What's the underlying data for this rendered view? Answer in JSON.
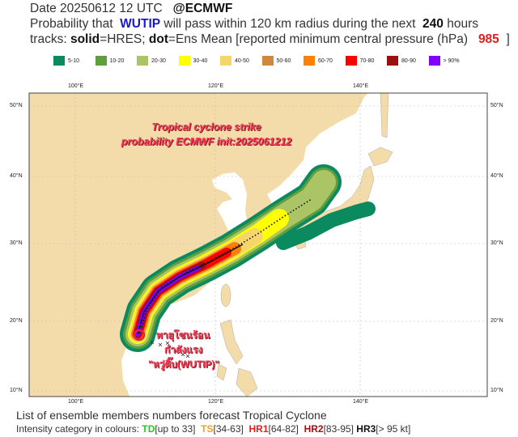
{
  "header": {
    "date_line": "Date 20250612 12 UTC",
    "source": "@ECMWF",
    "prob_prefix": "Probability that",
    "storm": "WUTIP",
    "prob_mid": "will pass within 120 km radius during the next",
    "hours": "240",
    "prob_suffix": "hours",
    "tracks_prefix": "tracks:",
    "solid": "solid",
    "solid_desc": "=HRES;",
    "dot": "dot",
    "dot_desc": "=Ens Mean [reported minimum central pressure (hPa)",
    "pressure": "985",
    "close": "]"
  },
  "legend": [
    {
      "label": "5-10",
      "color": "#0a8a5e"
    },
    {
      "label": "10-20",
      "color": "#5e9e3e"
    },
    {
      "label": "20-30",
      "color": "#aac466"
    },
    {
      "label": "30-40",
      "color": "#ffff00"
    },
    {
      "label": "40-50",
      "color": "#f5d66a"
    },
    {
      "label": "50-60",
      "color": "#d0883e"
    },
    {
      "label": "60-70",
      "color": "#ff7f00"
    },
    {
      "label": "70-80",
      "color": "#ff0000"
    },
    {
      "label": "80-90",
      "color": "#991010"
    },
    {
      "label": "> 90%",
      "color": "#8000ff"
    }
  ],
  "map": {
    "lon_labels": [
      "100°E",
      "120°E",
      "140°E"
    ],
    "lat_labels": [
      "50°N",
      "40°N",
      "30°N",
      "20°N",
      "10°N"
    ],
    "land_color": "#f4dcaa",
    "ocean_color": "#ffffff"
  },
  "overlay": {
    "title_line1": "Tropical cyclone strike",
    "title_line2": "probability ECMWF init:2025061212",
    "thai_line1": "พายุโซนร้อน",
    "thai_line2": "กำลังแรง",
    "thai_line3": "\"หวู่ติ๊บ(WUTIP)\""
  },
  "footer": {
    "line1": "List of ensemble members numbers forecast Tropical Cyclone",
    "intensity_prefix": "Intensity category in colours:",
    "td": "TD",
    "td_range": "[up to 33]",
    "ts": "TS",
    "ts_range": "[34-63]",
    "hr1": "HR1",
    "hr1_range": "[64-82]",
    "hr2": "HR2",
    "hr2_range": "[83-95]",
    "hr3": "HR3",
    "hr3_range": "[> 95 kt]"
  }
}
